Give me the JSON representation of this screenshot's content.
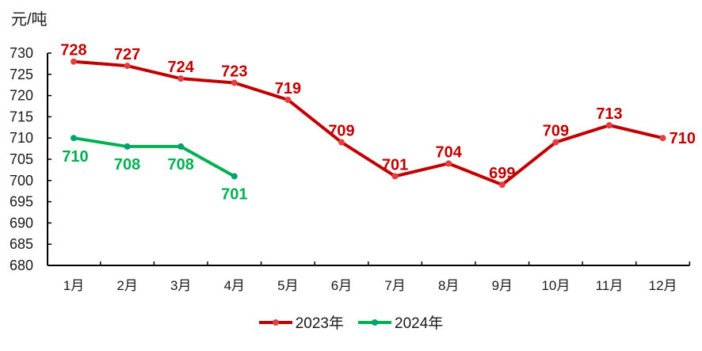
{
  "chart_data": {
    "type": "line",
    "title": "",
    "ylabel": "元/吨",
    "xlabel": "",
    "categories": [
      "1月",
      "2月",
      "3月",
      "4月",
      "5月",
      "6月",
      "7月",
      "8月",
      "9月",
      "10月",
      "11月",
      "12月"
    ],
    "ylim": [
      680,
      730
    ],
    "yticks": [
      680,
      685,
      690,
      695,
      700,
      705,
      710,
      715,
      720,
      725,
      730
    ],
    "grid": false,
    "legend_position": "bottom",
    "series": [
      {
        "name": "2023年",
        "color": "#c00000",
        "marker_color": "#e04040",
        "values": [
          728,
          727,
          724,
          723,
          719,
          709,
          701,
          704,
          699,
          709,
          713,
          710
        ],
        "label_position": "above"
      },
      {
        "name": "2024年",
        "color": "#00b050",
        "marker_color": "#00a070",
        "values": [
          710,
          708,
          708,
          701
        ],
        "label_position": "below"
      }
    ]
  },
  "legend": {
    "items": [
      {
        "label": "2023年",
        "color": "#c00000",
        "dot": "#e04040"
      },
      {
        "label": "2024年",
        "color": "#00b050",
        "dot": "#00a070"
      }
    ]
  }
}
